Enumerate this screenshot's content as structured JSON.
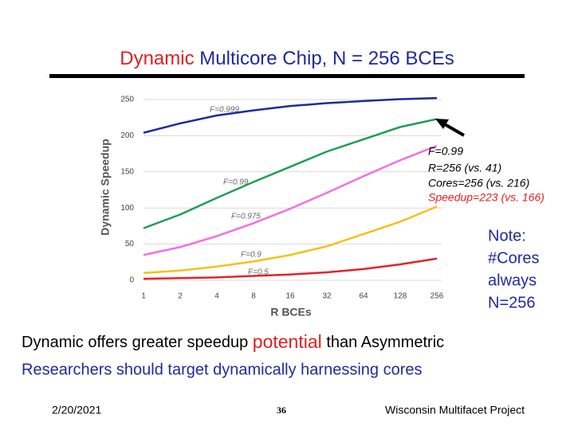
{
  "slide": {
    "title_highlight": "Dynamic",
    "title_rest": "Multicore Chip, N = 256 BCEs",
    "callout": [
      "F=0.99",
      "R=256 (vs. 41)",
      "Cores=256 (vs. 216)",
      "Speedup=223 (vs. 166)"
    ],
    "note": [
      "Note:",
      "#Cores",
      "always",
      "N=256"
    ],
    "line1_start": "Dynamic offers greater speedup",
    "line1_highlight": "potential",
    "line1_end": "than Asymmetric",
    "line2": "Researchers should target dynamically harnessing cores",
    "date": "2/20/2021",
    "page": "36",
    "org": "Wisconsin Multifacet Project"
  },
  "chart_data": {
    "type": "line",
    "xlabel": "R BCEs",
    "ylabel": "Dynamic Speedup",
    "categories": [
      "1",
      "2",
      "4",
      "8",
      "16",
      "32",
      "64",
      "128",
      "256"
    ],
    "ylim": [
      0,
      250
    ],
    "yticks": [
      0,
      50,
      100,
      150,
      200,
      250
    ],
    "grid": true,
    "series": [
      {
        "name": "F=0.999",
        "color": "#1f2a9c",
        "values": [
          204,
          217,
          228,
          235,
          241,
          245,
          248,
          250.5,
          252
        ]
      },
      {
        "name": "F=0.99",
        "color": "#1f9e55",
        "values": [
          72,
          91,
          114,
          136,
          157,
          178,
          195,
          212,
          223
        ]
      },
      {
        "name": "F=0.975",
        "color": "#f26fe6",
        "values": [
          35,
          46,
          61,
          79,
          99,
          121,
          144,
          166,
          186
        ]
      },
      {
        "name": "F=0.9",
        "color": "#f2c21b",
        "values": [
          10,
          13.5,
          19,
          26,
          35,
          47,
          64,
          81,
          102
        ]
      },
      {
        "name": "F=0.5",
        "color": "#e3232b",
        "values": [
          2,
          3,
          4,
          6,
          8,
          11,
          15.5,
          22,
          30
        ]
      }
    ]
  }
}
